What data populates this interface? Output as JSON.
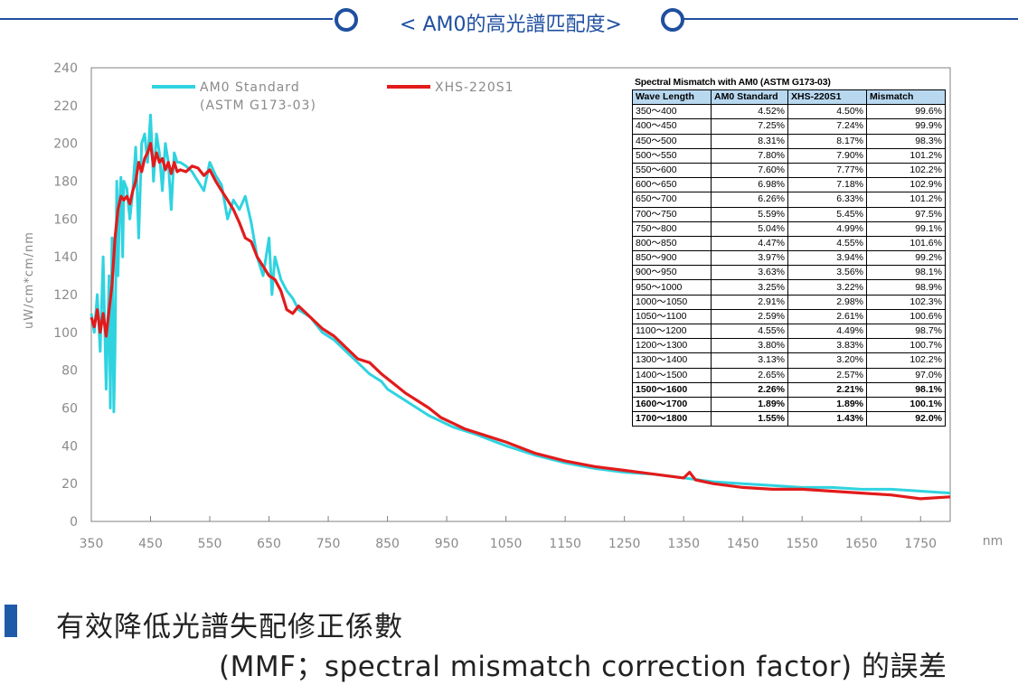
{
  "header": {
    "title": "< AM0的高光譜匹配度>"
  },
  "chart_data": {
    "type": "line",
    "xlabel": "nm",
    "ylabel": "uW/cm*cm/nm",
    "xlim": [
      350,
      1800
    ],
    "ylim": [
      0,
      240
    ],
    "x_ticks": [
      "350",
      "450",
      "550",
      "650",
      "750",
      "850",
      "950",
      "1050",
      "1150",
      "1250",
      "1350",
      "1450",
      "1550",
      "1650",
      "1750"
    ],
    "y_ticks": [
      "0",
      "20",
      "40",
      "60",
      "80",
      "100",
      "120",
      "140",
      "160",
      "180",
      "200",
      "220",
      "240"
    ],
    "legend_placement": "top-left",
    "series": [
      {
        "name": "AM0 Standard",
        "subname": "(ASTM G173-03)",
        "color": "#2fd3e0",
        "x": [
          350,
          355,
          360,
          365,
          370,
          375,
          380,
          382,
          385,
          388,
          390,
          393,
          395,
          398,
          400,
          403,
          405,
          410,
          415,
          420,
          425,
          430,
          435,
          440,
          445,
          450,
          455,
          460,
          465,
          470,
          475,
          480,
          485,
          490,
          495,
          500,
          510,
          520,
          530,
          540,
          550,
          560,
          570,
          580,
          590,
          600,
          610,
          620,
          630,
          640,
          650,
          655,
          660,
          670,
          680,
          690,
          700,
          720,
          740,
          760,
          780,
          800,
          820,
          840,
          850,
          860,
          880,
          900,
          920,
          940,
          960,
          980,
          1000,
          1050,
          1100,
          1150,
          1200,
          1250,
          1300,
          1350,
          1400,
          1450,
          1500,
          1550,
          1600,
          1650,
          1700,
          1750,
          1800
        ],
        "y": [
          110,
          100,
          120,
          90,
          140,
          70,
          130,
          60,
          150,
          58,
          90,
          180,
          130,
          170,
          182,
          140,
          180,
          176,
          160,
          175,
          198,
          150,
          200,
          205,
          190,
          215,
          180,
          205,
          195,
          175,
          200,
          190,
          165,
          195,
          190,
          190,
          188,
          185,
          180,
          175,
          190,
          183,
          178,
          160,
          170,
          165,
          172,
          158,
          140,
          130,
          150,
          120,
          140,
          128,
          122,
          118,
          112,
          108,
          100,
          96,
          90,
          84,
          78,
          74,
          70,
          68,
          64,
          60,
          56,
          53,
          50,
          48,
          46,
          40,
          35,
          31,
          28,
          26,
          25,
          23,
          21,
          20,
          19,
          18,
          18,
          17,
          17,
          16,
          15
        ]
      },
      {
        "name": "XHS-220S1",
        "color": "#e21b1b",
        "x": [
          350,
          355,
          360,
          365,
          370,
          375,
          380,
          385,
          390,
          395,
          400,
          405,
          410,
          415,
          420,
          425,
          430,
          435,
          440,
          445,
          450,
          455,
          460,
          465,
          470,
          475,
          480,
          485,
          490,
          495,
          500,
          510,
          520,
          530,
          540,
          550,
          560,
          570,
          580,
          590,
          600,
          610,
          620,
          630,
          640,
          650,
          660,
          670,
          680,
          690,
          700,
          720,
          740,
          760,
          780,
          800,
          820,
          840,
          860,
          880,
          900,
          920,
          940,
          960,
          980,
          1000,
          1050,
          1100,
          1150,
          1200,
          1250,
          1300,
          1350,
          1360,
          1370,
          1400,
          1450,
          1500,
          1550,
          1600,
          1650,
          1700,
          1750,
          1800
        ],
        "y": [
          108,
          103,
          112,
          100,
          110,
          98,
          112,
          125,
          150,
          165,
          172,
          170,
          172,
          168,
          175,
          180,
          190,
          185,
          192,
          195,
          200,
          188,
          195,
          190,
          192,
          186,
          190,
          184,
          190,
          185,
          186,
          185,
          188,
          187,
          183,
          186,
          180,
          175,
          170,
          165,
          158,
          150,
          148,
          140,
          135,
          130,
          128,
          122,
          112,
          110,
          114,
          108,
          102,
          98,
          92,
          86,
          84,
          78,
          73,
          68,
          64,
          60,
          55,
          52,
          49,
          47,
          42,
          36,
          32,
          29,
          27,
          25,
          23,
          26,
          22,
          20,
          18,
          17,
          17,
          16,
          15,
          14,
          12,
          13
        ]
      }
    ]
  },
  "table": {
    "title": "Spectral Mismatch with AM0 (ASTM G173-03)",
    "columns": [
      "Wave Length",
      "AM0 Standard",
      "XHS-220S1",
      "Mismatch"
    ],
    "rows": [
      [
        "350～400",
        "4.52%",
        "4.50%",
        "99.6%"
      ],
      [
        "400～450",
        "7.25%",
        "7.24%",
        "99.9%"
      ],
      [
        "450～500",
        "8.31%",
        "8.17%",
        "98.3%"
      ],
      [
        "500～550",
        "7.80%",
        "7.90%",
        "101.2%"
      ],
      [
        "550～600",
        "7.60%",
        "7.77%",
        "102.2%"
      ],
      [
        "600～650",
        "6.98%",
        "7.18%",
        "102.9%"
      ],
      [
        "650～700",
        "6.26%",
        "6.33%",
        "101.2%"
      ],
      [
        "700～750",
        "5.59%",
        "5.45%",
        "97.5%"
      ],
      [
        "750～800",
        "5.04%",
        "4.99%",
        "99.1%"
      ],
      [
        "800～850",
        "4.47%",
        "4.55%",
        "101.6%"
      ],
      [
        "850～900",
        "3.97%",
        "3.94%",
        "99.2%"
      ],
      [
        "900～950",
        "3.63%",
        "3.56%",
        "98.1%"
      ],
      [
        "950～1000",
        "3.25%",
        "3.22%",
        "98.9%"
      ],
      [
        "1000～1050",
        "2.91%",
        "2.98%",
        "102.3%"
      ],
      [
        "1050～1100",
        "2.59%",
        "2.61%",
        "100.6%"
      ],
      [
        "1100～1200",
        "4.55%",
        "4.49%",
        "98.7%"
      ],
      [
        "1200～1300",
        "3.80%",
        "3.83%",
        "100.7%"
      ],
      [
        "1300～1400",
        "3.13%",
        "3.20%",
        "102.2%"
      ],
      [
        "1400～1500",
        "2.65%",
        "2.57%",
        "97.0%"
      ],
      [
        "1500～1600",
        "2.26%",
        "2.21%",
        "98.1%"
      ],
      [
        "1600～1700",
        "1.89%",
        "1.89%",
        "100.1%"
      ],
      [
        "1700～1800",
        "1.55%",
        "1.43%",
        "92.0%"
      ]
    ]
  },
  "footer": {
    "line1": "有效降低光譜失配修正係數",
    "line2": "(MMF；spectral mismatch correction  factor) 的誤差"
  }
}
